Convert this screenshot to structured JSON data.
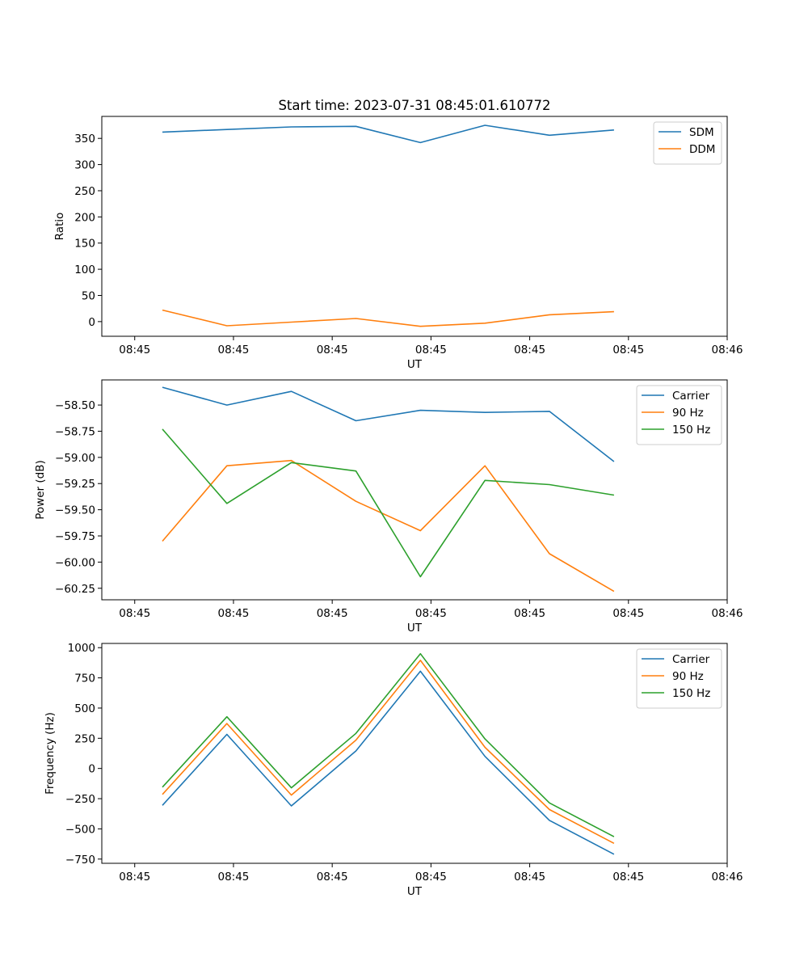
{
  "figure": {
    "title": "Start time: 2023-07-31 08:45:01.610772"
  },
  "chart_data": [
    {
      "type": "line",
      "title": "Start time: 2023-07-31 08:45:01.610772",
      "xlabel": "UT",
      "ylabel": "Ratio",
      "xlim": [
        -0.5,
        9.0
      ],
      "ylim": [
        -28,
        392
      ],
      "x_ticks": [
        {
          "v": 0,
          "label": "08:45"
        },
        {
          "v": 1.5,
          "label": "08:45"
        },
        {
          "v": 3,
          "label": "08:45"
        },
        {
          "v": 4.5,
          "label": "08:45"
        },
        {
          "v": 6,
          "label": "08:45"
        },
        {
          "v": 7.5,
          "label": "08:45"
        },
        {
          "v": 9,
          "label": "08:46"
        }
      ],
      "y_ticks": [
        0,
        50,
        100,
        150,
        200,
        250,
        300,
        350
      ],
      "x": [
        0.42,
        1.4,
        2.38,
        3.36,
        4.34,
        5.32,
        6.3,
        7.28
      ],
      "series": [
        {
          "name": "SDM",
          "color": "#1f77b4",
          "values": [
            362,
            367,
            372,
            373,
            342,
            375,
            356,
            366
          ]
        },
        {
          "name": "DDM",
          "color": "#ff7f0e",
          "values": [
            22,
            -8,
            -1,
            6,
            -9,
            -3,
            13,
            19
          ]
        }
      ],
      "legend": "top-right"
    },
    {
      "type": "line",
      "title": "",
      "xlabel": "UT",
      "ylabel": "Power (dB)",
      "xlim": [
        -0.5,
        9.0
      ],
      "ylim": [
        -60.36,
        -58.26
      ],
      "x_ticks": [
        {
          "v": 0,
          "label": "08:45"
        },
        {
          "v": 1.5,
          "label": "08:45"
        },
        {
          "v": 3,
          "label": "08:45"
        },
        {
          "v": 4.5,
          "label": "08:45"
        },
        {
          "v": 6,
          "label": "08:45"
        },
        {
          "v": 7.5,
          "label": "08:45"
        },
        {
          "v": 9,
          "label": "08:46"
        }
      ],
      "y_ticks": [
        -58.5,
        -58.75,
        -59.0,
        -59.25,
        -59.5,
        -59.75,
        -60.0,
        -60.25
      ],
      "y_tick_labels": [
        "−58.50",
        "−58.75",
        "−59.00",
        "−59.25",
        "−59.50",
        "−59.75",
        "−60.00",
        "−60.25"
      ],
      "x": [
        0.42,
        1.4,
        2.38,
        3.36,
        4.34,
        5.32,
        6.3,
        7.28
      ],
      "series": [
        {
          "name": "Carrier",
          "color": "#1f77b4",
          "values": [
            -58.33,
            -58.5,
            -58.37,
            -58.65,
            -58.55,
            -58.57,
            -58.56,
            -59.04
          ]
        },
        {
          "name": "90 Hz",
          "color": "#ff7f0e",
          "values": [
            -59.8,
            -59.08,
            -59.03,
            -59.42,
            -59.7,
            -59.08,
            -59.92,
            -60.28
          ]
        },
        {
          "name": "150 Hz",
          "color": "#2ca02c",
          "values": [
            -58.73,
            -59.44,
            -59.05,
            -59.13,
            -60.14,
            -59.22,
            -59.26,
            -59.36
          ]
        }
      ],
      "legend": "top-right"
    },
    {
      "type": "line",
      "title": "",
      "xlabel": "UT",
      "ylabel": "Frequency (Hz)",
      "xlim": [
        -0.5,
        9.0
      ],
      "ylim": [
        -785,
        1035
      ],
      "x_ticks": [
        {
          "v": 0,
          "label": "08:45"
        },
        {
          "v": 1.5,
          "label": "08:45"
        },
        {
          "v": 3,
          "label": "08:45"
        },
        {
          "v": 4.5,
          "label": "08:45"
        },
        {
          "v": 6,
          "label": "08:45"
        },
        {
          "v": 7.5,
          "label": "08:45"
        },
        {
          "v": 9,
          "label": "08:46"
        }
      ],
      "y_ticks": [
        1000,
        750,
        500,
        250,
        0,
        -250,
        -500,
        -750
      ],
      "y_tick_labels": [
        "1000",
        "750",
        "500",
        "250",
        "0",
        "−250",
        "−500",
        "−750"
      ],
      "x": [
        0.42,
        1.4,
        2.38,
        3.36,
        4.34,
        5.32,
        6.3,
        7.28
      ],
      "series": [
        {
          "name": "Carrier",
          "color": "#1f77b4",
          "values": [
            -305,
            282,
            -310,
            145,
            805,
            100,
            -430,
            -710
          ]
        },
        {
          "name": "90 Hz",
          "color": "#ff7f0e",
          "values": [
            -215,
            372,
            -220,
            235,
            895,
            175,
            -340,
            -620
          ]
        },
        {
          "name": "150 Hz",
          "color": "#2ca02c",
          "values": [
            -155,
            428,
            -160,
            290,
            950,
            245,
            -285,
            -565
          ]
        }
      ],
      "legend": "top-right"
    }
  ]
}
